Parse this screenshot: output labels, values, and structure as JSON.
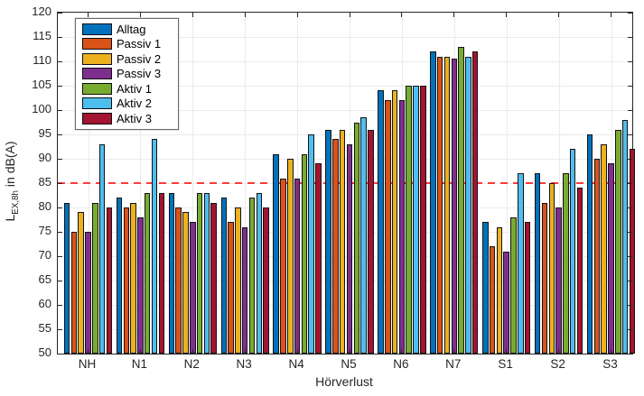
{
  "chart_data": {
    "type": "bar",
    "title": "",
    "xlabel": "Hörverlust",
    "ylabel": "L_EX,8h in dB(A)",
    "ylabel_parts": {
      "prefix": "L",
      "subscript": "EX,8h",
      "suffix": " in dB(A)"
    },
    "categories": [
      "NH",
      "N1",
      "N2",
      "N3",
      "N4",
      "N5",
      "N6",
      "N7",
      "S1",
      "S2",
      "S3"
    ],
    "series": [
      {
        "name": "Alltag",
        "color": "#0072BD",
        "values": [
          81,
          82,
          83,
          82,
          91,
          96,
          104,
          112,
          77,
          87,
          95
        ]
      },
      {
        "name": "Passiv 1",
        "color": "#D95319",
        "values": [
          75,
          80,
          80,
          77,
          86,
          94,
          102,
          111,
          72,
          81,
          90
        ]
      },
      {
        "name": "Passiv 2",
        "color": "#EDB120",
        "values": [
          79,
          81,
          79,
          80,
          90,
          96,
          104,
          111,
          76,
          85,
          93
        ]
      },
      {
        "name": "Passiv 3",
        "color": "#7E2F8E",
        "values": [
          75,
          78,
          77,
          76,
          86,
          93,
          102,
          110.5,
          71,
          80,
          89
        ]
      },
      {
        "name": "Aktiv 1",
        "color": "#77AC30",
        "values": [
          81,
          83,
          83,
          82,
          91,
          97.5,
          105,
          113,
          78,
          87,
          96
        ]
      },
      {
        "name": "Aktiv 2",
        "color": "#4DBEEE",
        "values": [
          93,
          94,
          83,
          83,
          95,
          98.5,
          105,
          111,
          87,
          92,
          98
        ]
      },
      {
        "name": "Aktiv 3",
        "color": "#A2142F",
        "values": [
          80,
          83,
          81,
          80,
          89,
          96,
          105,
          112,
          77,
          84,
          92
        ]
      }
    ],
    "ylim": [
      50,
      120
    ],
    "yticks": [
      50,
      55,
      60,
      65,
      70,
      75,
      80,
      85,
      90,
      95,
      100,
      105,
      110,
      115,
      120
    ],
    "grid": true,
    "legend_position": "top-left",
    "reference_line": {
      "value": 85,
      "color": "#FF3B3B",
      "style": "dashed"
    }
  }
}
